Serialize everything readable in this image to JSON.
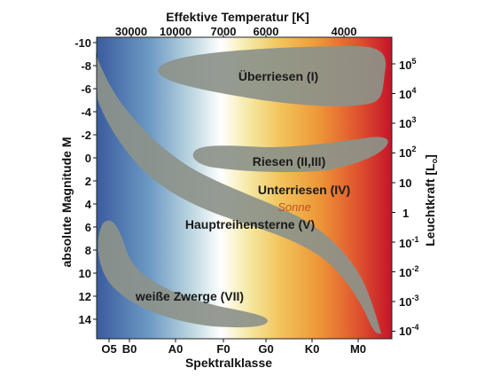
{
  "title_top": "Effektive Temperatur [K]",
  "xlabel_bottom": "Spektralklasse",
  "ylabel_left": "absolute Magnitude M",
  "ylabel_right_main": "Leuchtkraft [L",
  "ylabel_right_sub": "o",
  "ylabel_right_close": "]",
  "temperature_ticks": [
    "30000",
    "10000",
    "7000",
    "6000",
    "4000"
  ],
  "spectral_classes": [
    "O5",
    "B0",
    "A0",
    "F0",
    "G0",
    "K0",
    "M0"
  ],
  "magnitude_ticks": [
    "-10",
    "-8",
    "-6",
    "-4",
    "-2",
    "0",
    "2",
    "4",
    "6",
    "8",
    "10",
    "12",
    "14"
  ],
  "luminosity_ticks": [
    {
      "base": "10",
      "exp": "5"
    },
    {
      "base": "10",
      "exp": "4"
    },
    {
      "base": "10",
      "exp": "3"
    },
    {
      "base": "10",
      "exp": "2"
    },
    {
      "base": "10",
      "exp": ""
    },
    {
      "base": "1",
      "exp": ""
    },
    {
      "base": "10",
      "exp": "-1"
    },
    {
      "base": "10",
      "exp": "-2"
    },
    {
      "base": "10",
      "exp": "-3"
    },
    {
      "base": "10",
      "exp": "-4"
    }
  ],
  "regions": {
    "supergiants": "Überriesen (I)",
    "giants": "Riesen (II,III)",
    "subgiants": "Unterriesen (IV)",
    "sun": "Sonne",
    "main_sequence": "Hauptreihensterne (V)",
    "white_dwarfs": "weiße Zwerge (VII)"
  },
  "colors": {
    "hot_blue": "#3b5fa0",
    "white": "#ffffff",
    "yellow": "#f4dc70",
    "orange": "#ef9a3a",
    "red": "#c7182a",
    "band_gray": "#8a9188"
  }
}
